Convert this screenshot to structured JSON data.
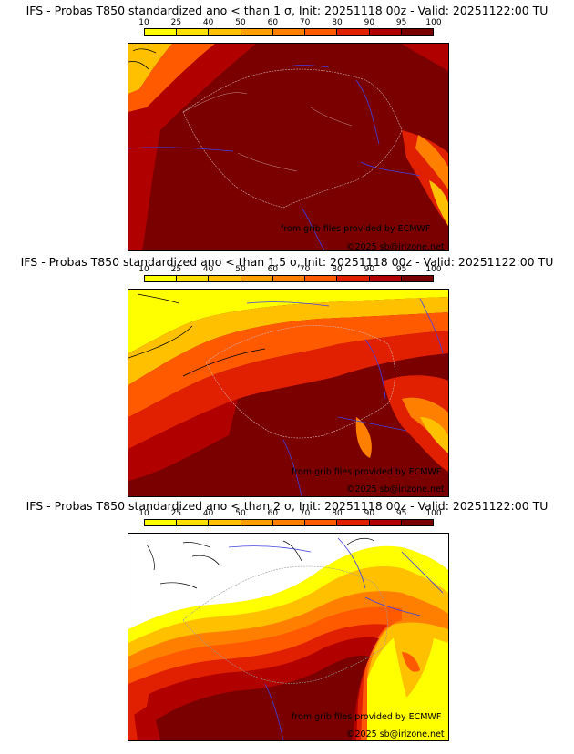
{
  "legend": {
    "ticks": [
      "10",
      "25",
      "40",
      "50",
      "60",
      "70",
      "80",
      "90",
      "95",
      "100"
    ],
    "colors": [
      "#ffff00",
      "#ffe000",
      "#ffc000",
      "#ffa000",
      "#ff8000",
      "#ff5a00",
      "#e02000",
      "#b00000",
      "#7a0000"
    ]
  },
  "maps": [
    {
      "title": "IFS - Probas T850  standardized ano < than 1 σ, Init: 20251118 00z - Valid: 20251122:00 TU",
      "credit": "from grib files provided by ECMWF",
      "copyright": "©2025 sb@irizone.net"
    },
    {
      "title": "IFS - Probas T850  standardized ano < than 1.5 σ, Init: 20251118 00z - Valid: 20251122:00 TU",
      "credit": "from grib files provided by ECMWF",
      "copyright": "©2025 sb@irizone.net"
    },
    {
      "title": "IFS - Probas T850  standardized ano < than 2 σ, Init: 20251118 00z - Valid: 20251122:00 TU",
      "credit": "from grib files provided by ECMWF",
      "copyright": "©2025 sb@irizone.net"
    }
  ]
}
